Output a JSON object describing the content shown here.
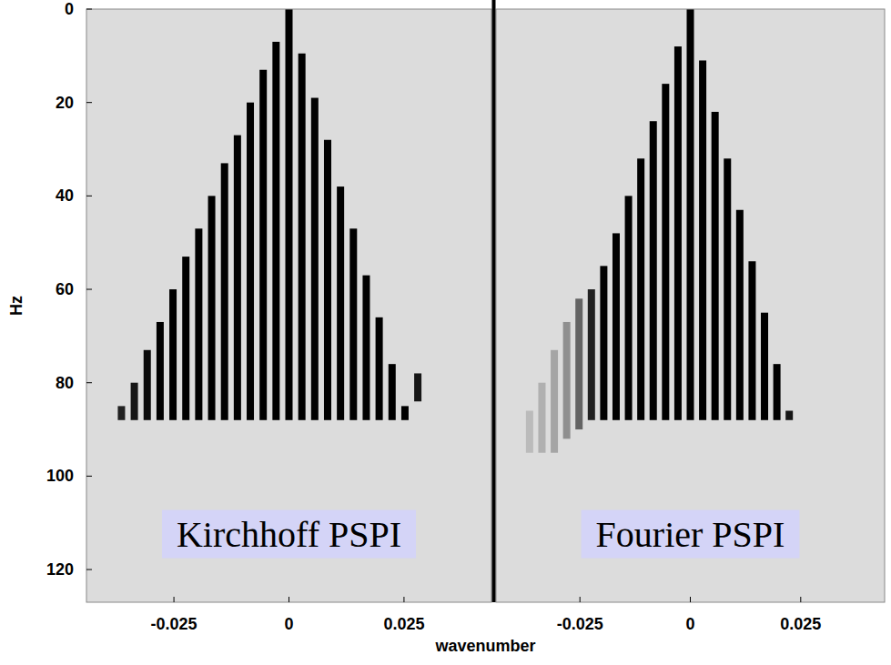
{
  "chart_data": [
    {
      "type": "heatmap",
      "annotation": "Kirchhoff PSPI",
      "y_label": "Hz",
      "x_label": "wavenumber",
      "xlim": [
        -0.044,
        0.044
      ],
      "ylim": [
        0,
        127
      ],
      "xticks": [
        -0.025,
        0,
        0.025
      ],
      "yticks": [
        0,
        20,
        40,
        60,
        80,
        100,
        120
      ],
      "stripes": {
        "k": [
          -0.0364,
          -0.0336,
          -0.0308,
          -0.028,
          -0.0252,
          -0.0224,
          -0.0196,
          -0.0168,
          -0.014,
          -0.0112,
          -0.0084,
          -0.0056,
          -0.0028,
          0,
          0.0028,
          0.0056,
          0.0084,
          0.0112,
          0.014,
          0.0168,
          0.0196,
          0.0224,
          0.0252,
          0.028
        ],
        "f_top": [
          85,
          80,
          73,
          67,
          60,
          53,
          47,
          40,
          33,
          27,
          20,
          13,
          7,
          0,
          9.5,
          19,
          28,
          38,
          47,
          57,
          66,
          76,
          85,
          78
        ],
        "f_bottom": [
          88,
          88,
          88,
          88,
          88,
          88,
          88,
          88,
          88,
          88,
          88,
          88,
          88,
          88,
          88,
          88,
          88,
          88,
          88,
          88,
          88,
          88,
          88,
          84
        ],
        "intensity": [
          0.85,
          0.9,
          0.95,
          1,
          1,
          1,
          1,
          1,
          1,
          1,
          1,
          1,
          1,
          1,
          1,
          1,
          1,
          1,
          1,
          1,
          1,
          1,
          1,
          0.9
        ]
      }
    },
    {
      "type": "heatmap",
      "annotation": "Fourier PSPI",
      "tick_labels": "x",
      "xlim": [
        -0.044,
        0.044
      ],
      "ylim": [
        0,
        127
      ],
      "xticks": [
        -0.025,
        0,
        0.025
      ],
      "stripes": {
        "k": [
          -0.0364,
          -0.0336,
          -0.0308,
          -0.028,
          -0.0252,
          -0.0224,
          -0.0196,
          -0.0168,
          -0.014,
          -0.0112,
          -0.0084,
          -0.0056,
          -0.0028,
          0,
          0.0028,
          0.0056,
          0.0084,
          0.0112,
          0.014,
          0.0168,
          0.0196,
          0.0224
        ],
        "f_top": [
          86,
          80,
          73,
          67,
          62,
          60,
          55,
          48,
          40,
          32,
          24,
          16,
          8,
          0,
          11,
          22,
          32,
          43,
          54,
          65,
          76,
          86
        ],
        "f_bottom": [
          95,
          95,
          95,
          92,
          90,
          88,
          88,
          88,
          88,
          88,
          88,
          88,
          88,
          88,
          88,
          88,
          88,
          88,
          88,
          88,
          88,
          88
        ],
        "intensity": [
          0.15,
          0.2,
          0.25,
          0.35,
          0.55,
          0.85,
          1,
          1,
          1,
          1,
          1,
          1,
          1,
          1,
          1,
          1,
          1,
          1,
          1,
          1,
          1,
          0.9
        ]
      }
    }
  ]
}
